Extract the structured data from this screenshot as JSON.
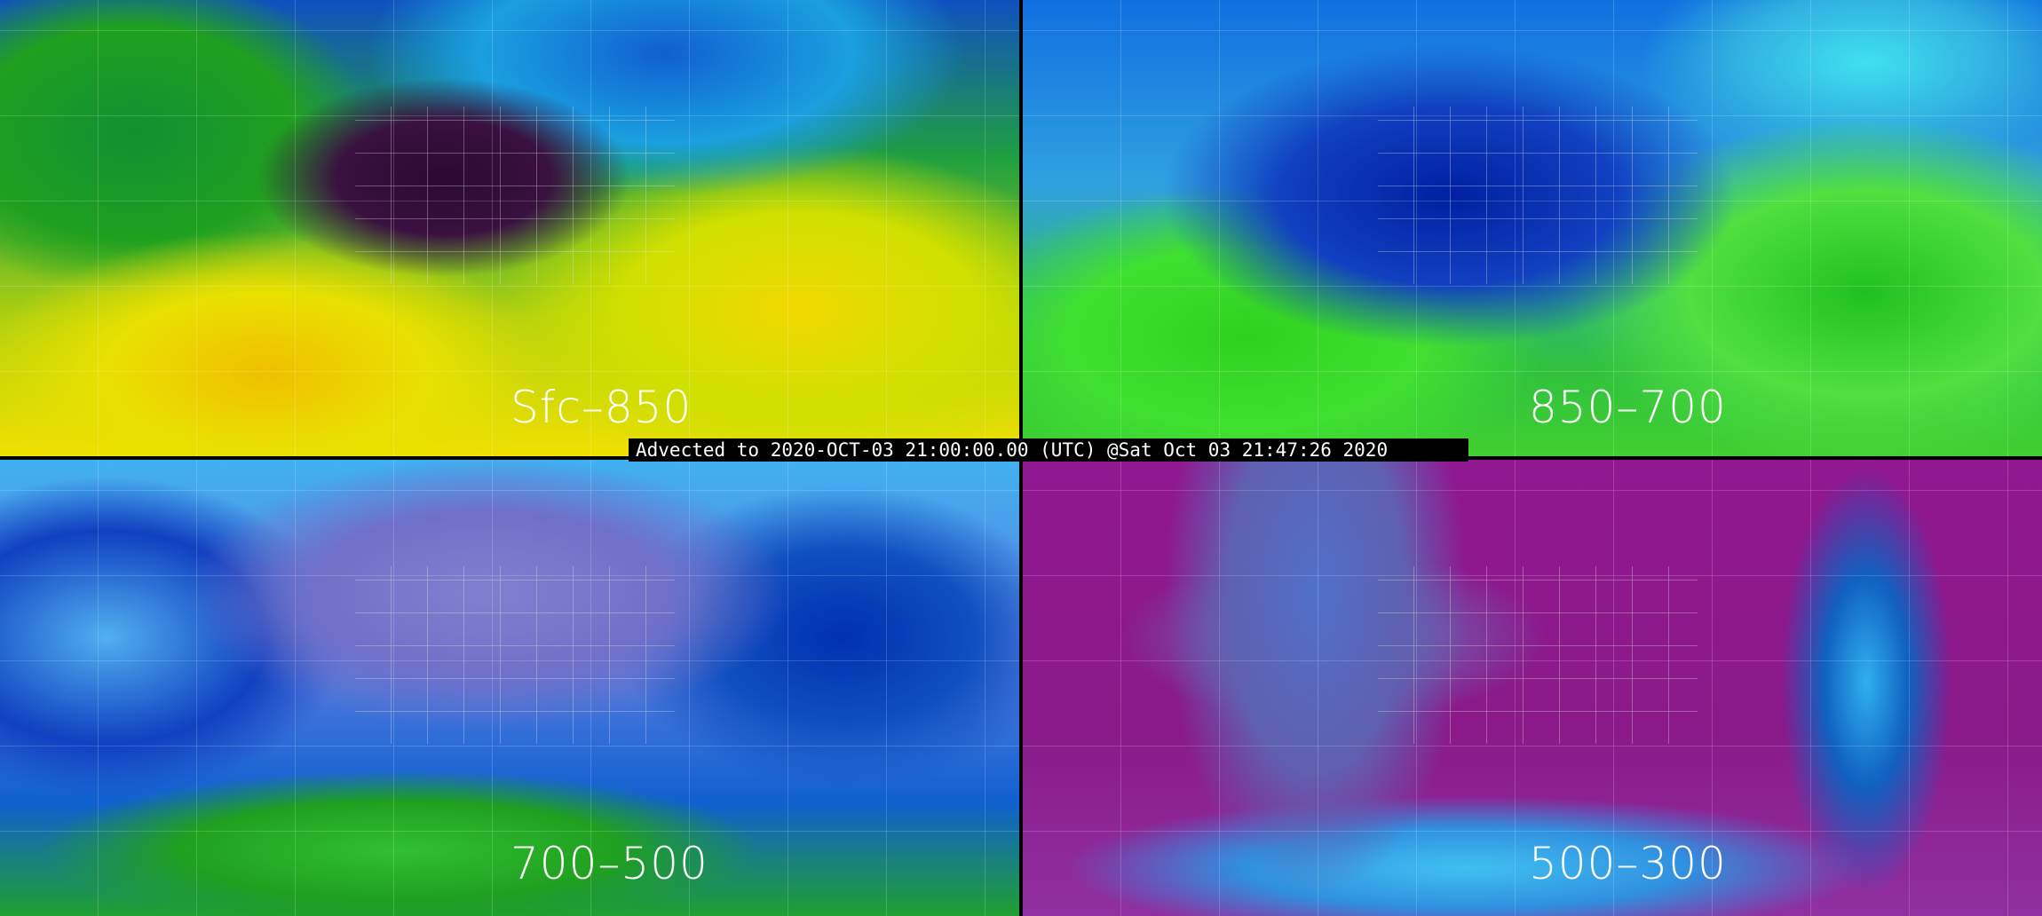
{
  "panels": [
    {
      "label": "Sfc–850",
      "palette": [
        "#2a0a30",
        "#1060d0",
        "#20a040",
        "#f0e000",
        "#f0c000"
      ]
    },
    {
      "label": "850–700",
      "palette": [
        "#0020a0",
        "#1070e0",
        "#40e0f0",
        "#40d030"
      ]
    },
    {
      "label": "700–500",
      "palette": [
        "#7070c8",
        "#40b0f0",
        "#1050c0",
        "#20a030"
      ]
    },
    {
      "label": "500–300",
      "palette": [
        "#901890",
        "#6060b0",
        "#40c0f0",
        "#1060c0"
      ]
    }
  ],
  "timestamp": "Advected to 2020-OCT-03 21:00:00.00 (UTC) @Sat Oct 03 21:47:26 2020"
}
